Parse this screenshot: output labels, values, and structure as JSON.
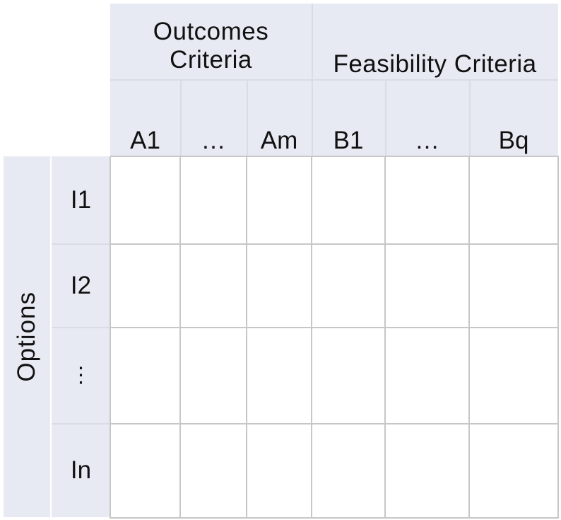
{
  "header_groups": [
    {
      "label": "Outcomes\nCriteria"
    },
    {
      "label": "Feasibility Criteria"
    }
  ],
  "columns": [
    "A1",
    "…",
    "Am",
    "B1",
    "…",
    "Bq"
  ],
  "row_group_label": "Options",
  "rows": [
    "I1",
    "I2",
    "⋮",
    "In"
  ]
}
